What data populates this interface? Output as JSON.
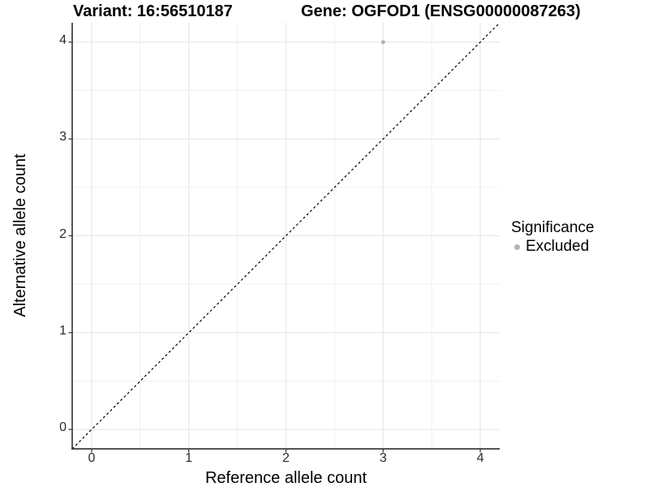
{
  "chart_data": {
    "type": "scatter",
    "title_left": "Variant: 16:56510187",
    "title_right": "Gene: OGFOD1 (ENSG00000087263)",
    "xlabel": "Reference allele count",
    "ylabel": "Alternative allele count",
    "xlim": [
      -0.2,
      4.2
    ],
    "ylim": [
      -0.2,
      4.2
    ],
    "x_ticks": [
      0,
      1,
      2,
      3,
      4
    ],
    "y_ticks": [
      0,
      1,
      2,
      3,
      4
    ],
    "x_minor": [
      0.5,
      1.5,
      2.5,
      3.5
    ],
    "y_minor": [
      0.5,
      1.5,
      2.5,
      3.5
    ],
    "grid": "major+minor",
    "legend_position": "right",
    "reference_line": {
      "kind": "identity y=x",
      "style": "dashed",
      "color": "#000000"
    },
    "series": [
      {
        "name": "Excluded",
        "color": "#b3b3b3",
        "points": [
          {
            "x": 3,
            "y": 4
          }
        ]
      }
    ],
    "legend": {
      "title": "Significance",
      "entries": [
        {
          "label": "Excluded",
          "color": "#b3b3b3",
          "marker": "dot-icon"
        }
      ]
    },
    "colors": {
      "background": "#ffffff",
      "grid_major": "#e4e4e4",
      "grid_minor": "#f0f0f0",
      "axis": "#3c3c3c",
      "tick_text": "#2b2b2b",
      "title_text": "#000000"
    }
  }
}
